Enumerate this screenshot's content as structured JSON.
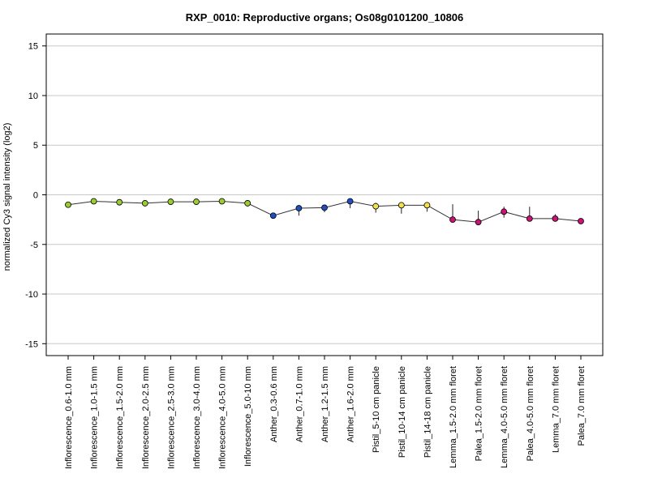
{
  "chart_data": {
    "type": "line",
    "title": "RXP_0010: Reproductive organs; Os08g0101200_10806",
    "xlabel": "",
    "ylabel": "normalized Cy3 signal intensity (log2)",
    "ylim": [
      -16.2,
      16.2
    ],
    "yticks": [
      15,
      10,
      5,
      0,
      -5,
      -10,
      -15
    ],
    "grid": true,
    "legend": "none",
    "categories": [
      "Inflorescence_0.6-1.0 mm",
      "Inflorescence_1.0-1.5 mm",
      "Inflorescence_1.5-2.0 mm",
      "Inflorescence_2.0-2.5 mm",
      "Inflorescence_2.5-3.0 mm",
      "Inflorescence_3.0-4.0 mm",
      "Inflorescence_4.0-5.0 mm",
      "Inflorescence_5.0-10 mm",
      "Anther_0.3-0.6 mm",
      "Anther_0.7-1.0 mm",
      "Anther_1.2-1.5 mm",
      "Anther_1.6-2.0 mm",
      "Pistil_5-10 cm panicle",
      "Pistil_10-14 cm panicle",
      "Pistil_14-18 cm panicle",
      "Lemma_1.5-2.0 mm floret",
      "Palea_1.5-2.0 mm floret",
      "Lemma_4.0-5.0 mm floret",
      "Palea_4.0-5.0 mm floret",
      "Lemma_7.0 mm floret",
      "Palea_7.0 mm floret"
    ],
    "series": [
      {
        "values": [
          -1.0,
          -0.65,
          -0.75,
          -0.85,
          -0.7,
          -0.7,
          -0.65,
          -0.85,
          -2.1,
          -1.35,
          -1.3,
          -0.65,
          -1.15,
          -1.05,
          -1.05,
          -2.5,
          -2.75,
          -1.7,
          -2.4,
          -2.4,
          -2.65
        ],
        "error_high": [
          -0.85,
          -0.5,
          -0.6,
          -0.7,
          -0.55,
          -0.45,
          -0.45,
          -0.55,
          -2.0,
          -1.1,
          -1.05,
          -0.55,
          -0.8,
          -0.75,
          -0.75,
          -0.95,
          -1.6,
          -1.2,
          -1.2,
          -1.95,
          -2.5
        ],
        "error_low": [
          -1.1,
          -0.75,
          -0.85,
          -0.95,
          -0.8,
          -0.85,
          -0.8,
          -1.0,
          -2.2,
          -2.1,
          -1.75,
          -1.35,
          -1.8,
          -1.9,
          -1.7,
          -2.8,
          -2.95,
          -2.3,
          -2.6,
          -2.6,
          -2.85
        ],
        "colors": [
          "#9ACD32",
          "#9ACD32",
          "#9ACD32",
          "#9ACD32",
          "#9ACD32",
          "#9ACD32",
          "#9ACD32",
          "#9ACD32",
          "#1F4FBF",
          "#1F4FBF",
          "#1F4FBF",
          "#1F4FBF",
          "#F2E14A",
          "#F2E14A",
          "#F2E14A",
          "#CC1177",
          "#CC1177",
          "#CC1177",
          "#CC1177",
          "#CC1177",
          "#CC1177"
        ]
      }
    ]
  }
}
